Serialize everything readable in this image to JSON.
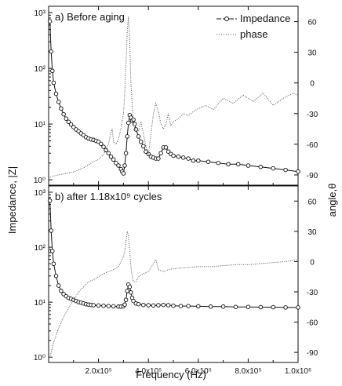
{
  "chart_data": [
    {
      "type": "line",
      "panel_title": "a) Before aging",
      "xlabel": "Frequency (Hz)",
      "ylabel": "Impedance, |Z|",
      "y2label": "angle,θ",
      "xlim": [
        0,
        1000000
      ],
      "ylim": [
        0.8,
        1300
      ],
      "y2lim": [
        -100,
        75
      ],
      "ylog": true,
      "legend_position": "top-right",
      "series": [
        {
          "name": "Impedance",
          "axis": "left",
          "style": "line-circles",
          "x": [
            5000,
            10000,
            15000,
            20000,
            30000,
            40000,
            50000,
            60000,
            70000,
            80000,
            90000,
            100000,
            110000,
            120000,
            130000,
            140000,
            150000,
            160000,
            170000,
            180000,
            190000,
            200000,
            210000,
            220000,
            230000,
            240000,
            250000,
            260000,
            270000,
            280000,
            290000,
            295000,
            300000,
            305000,
            310000,
            315000,
            320000,
            325000,
            330000,
            335000,
            340000,
            345000,
            350000,
            360000,
            370000,
            380000,
            390000,
            400000,
            410000,
            420000,
            430000,
            440000,
            450000,
            460000,
            470000,
            480000,
            490000,
            500000,
            520000,
            540000,
            560000,
            580000,
            600000,
            640000,
            680000,
            720000,
            760000,
            800000,
            850000,
            900000,
            950000,
            1000000
          ],
          "y": [
            700,
            200,
            90,
            55,
            35,
            25,
            19,
            15,
            12.5,
            11,
            9.8,
            8.8,
            8,
            7.4,
            6.8,
            6.3,
            5.8,
            5.5,
            5.3,
            5.2,
            5.0,
            4.8,
            4.4,
            3.9,
            3.4,
            3.0,
            2.6,
            2.3,
            2.0,
            1.8,
            1.55,
            1.4,
            1.3,
            1.8,
            3.0,
            6.0,
            10.5,
            14.5,
            13.0,
            11.5,
            12.0,
            10.0,
            8.0,
            6.0,
            4.8,
            4.0,
            3.2,
            2.9,
            2.6,
            2.5,
            2.4,
            2.4,
            3.0,
            3.8,
            3.8,
            3.2,
            2.9,
            2.7,
            2.6,
            2.5,
            2.4,
            2.2,
            2.2,
            2.1,
            2.0,
            1.9,
            1.9,
            1.8,
            1.7,
            1.6,
            1.5,
            1.4
          ]
        },
        {
          "name": "phase",
          "axis": "right",
          "style": "dotted",
          "x": [
            5000,
            20000,
            40000,
            60000,
            80000,
            100000,
            120000,
            140000,
            160000,
            180000,
            200000,
            220000,
            240000,
            250000,
            255000,
            260000,
            270000,
            280000,
            290000,
            300000,
            305000,
            310000,
            315000,
            320000,
            325000,
            330000,
            335000,
            340000,
            350000,
            360000,
            370000,
            380000,
            390000,
            400000,
            410000,
            420000,
            430000,
            440000,
            450000,
            460000,
            470000,
            480000,
            490000,
            500000,
            520000,
            540000,
            560000,
            580000,
            600000,
            630000,
            660000,
            700000,
            740000,
            780000,
            820000,
            860000,
            900000,
            940000,
            980000,
            1000000
          ],
          "y": [
            -92,
            -91,
            -90,
            -89,
            -88,
            -87,
            -85,
            -83,
            -80,
            -77,
            -75,
            -70,
            -60,
            -48,
            -45,
            -58,
            -60,
            -55,
            -45,
            -30,
            -10,
            20,
            50,
            65,
            40,
            0,
            -20,
            -40,
            -48,
            -47,
            -38,
            -50,
            -62,
            -70,
            -50,
            -30,
            -20,
            -28,
            -40,
            -45,
            -40,
            -30,
            -42,
            -38,
            -35,
            -30,
            -32,
            -28,
            -25,
            -22,
            -26,
            -15,
            -20,
            -12,
            -18,
            -10,
            -22,
            -15,
            -10,
            -12
          ]
        }
      ]
    },
    {
      "type": "line",
      "panel_title": "b) after 1.18x10⁹ cycles",
      "xlabel": "Frequency (Hz)",
      "xlim": [
        0,
        1000000
      ],
      "ylim": [
        0.8,
        1300
      ],
      "y2lim": [
        -100,
        75
      ],
      "ylog": true,
      "series": [
        {
          "name": "Impedance",
          "axis": "left",
          "style": "line-circles",
          "x": [
            5000,
            10000,
            15000,
            20000,
            30000,
            40000,
            50000,
            60000,
            70000,
            80000,
            90000,
            100000,
            110000,
            120000,
            130000,
            140000,
            150000,
            160000,
            170000,
            180000,
            200000,
            220000,
            240000,
            260000,
            280000,
            290000,
            300000,
            305000,
            310000,
            315000,
            320000,
            325000,
            330000,
            335000,
            340000,
            350000,
            360000,
            380000,
            400000,
            420000,
            440000,
            460000,
            480000,
            500000,
            530000,
            560000,
            600000,
            650000,
            700000,
            750000,
            800000,
            850000,
            900000,
            950000,
            1000000
          ],
          "y": [
            700,
            200,
            85,
            50,
            30,
            20,
            16,
            14,
            12.8,
            12,
            11.5,
            11,
            10.5,
            10,
            9.8,
            9.5,
            9.2,
            9.0,
            8.9,
            8.8,
            8.7,
            8.6,
            8.5,
            8.4,
            8.3,
            8.3,
            8.4,
            9.0,
            11,
            16,
            21,
            19,
            15,
            12,
            10.5,
            9.5,
            9.2,
            8.9,
            8.8,
            8.7,
            8.8,
            8.9,
            8.8,
            8.6,
            8.5,
            8.5,
            8.4,
            8.3,
            8.3,
            8.2,
            8.2,
            8.1,
            8.1,
            8.0,
            8.0
          ]
        },
        {
          "name": "phase",
          "axis": "right",
          "style": "dotted",
          "x": [
            5000,
            20000,
            40000,
            60000,
            80000,
            100000,
            120000,
            140000,
            160000,
            180000,
            200000,
            220000,
            240000,
            260000,
            280000,
            290000,
            300000,
            305000,
            310000,
            315000,
            320000,
            325000,
            330000,
            335000,
            340000,
            350000,
            360000,
            380000,
            400000,
            420000,
            430000,
            440000,
            460000,
            480000,
            500000,
            550000,
            600000,
            650000,
            700000,
            750000,
            800000,
            850000,
            900000,
            950000,
            1000000
          ],
          "y": [
            -95,
            -80,
            -66,
            -55,
            -46,
            -38,
            -30,
            -25,
            -20,
            -18,
            -15,
            -12,
            -10,
            -8,
            -5,
            0,
            5,
            10,
            20,
            30,
            25,
            10,
            -5,
            -15,
            -20,
            -20,
            -15,
            -12,
            -10,
            -2,
            2,
            -8,
            -10,
            -8,
            -7,
            -6,
            -5,
            -5,
            -4,
            -3,
            -3,
            -2,
            -1,
            0,
            2
          ]
        }
      ]
    }
  ],
  "axes": {
    "x_ticks": [
      "2.0x10⁵",
      "4.0x10⁵",
      "6.0x10⁵",
      "8.0x10⁵",
      "1.0x10⁶"
    ],
    "y_ticks": [
      "10⁰",
      "10¹",
      "10²",
      "10³"
    ],
    "y2_ticks": [
      "60",
      "30",
      "0",
      "-30",
      "-60",
      "-90"
    ],
    "xlabel": "Frequency (Hz)",
    "ylabel": "Impedance, |Z|",
    "y2label": "angle,θ"
  },
  "legend": {
    "impedance": "Impedance",
    "phase": "phase"
  },
  "colors": {
    "impedance": "#111111",
    "phase": "#555555"
  }
}
